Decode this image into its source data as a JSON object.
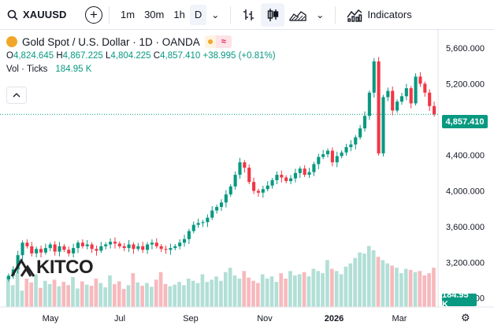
{
  "toolbar": {
    "symbol": "XAUUSD",
    "timeframes": [
      "1m",
      "30m",
      "1h",
      "D"
    ],
    "active_timeframe": "D",
    "indicators_label": "Indicators"
  },
  "legend": {
    "title": "Gold Spot / U.S. Dollar · 1D · OANDA",
    "o_label": "O",
    "o": "4,824.645",
    "h_label": "H",
    "h": "4,867.225",
    "l_label": "L",
    "l": "4,804.225",
    "c_label": "C",
    "c": "4,857.410",
    "change": "+38.995 (+0.81%)",
    "vol_label": "Vol · Ticks",
    "vol_value": "184.95 K",
    "pill_symbol": "≈"
  },
  "colors": {
    "up": "#089981",
    "down": "#f23645",
    "vol_up": "#b2dfd6",
    "vol_down": "#f7b9bd"
  },
  "chart_data": {
    "type": "candlestick",
    "price_axis_ticks": [
      "5,600.000",
      "5,200.000",
      "4,400.000",
      "4,000.000",
      "3,600.000",
      "3,200.000",
      "2,800.000"
    ],
    "x_axis_labels": [
      "May",
      "Jul",
      "Sep",
      "Nov",
      "2026",
      "Mar"
    ],
    "last_price": "4,857.410",
    "last_volume": "184.95 K",
    "ylim": [
      2700,
      5750
    ],
    "series": [
      {
        "name": "price",
        "close": [
          3050,
          3120,
          3280,
          3420,
          3380,
          3300,
          3350,
          3310,
          3360,
          3400,
          3320,
          3380,
          3340,
          3300,
          3360,
          3420,
          3380,
          3400,
          3350,
          3330,
          3380,
          3400,
          3430,
          3410,
          3380,
          3360,
          3400,
          3350,
          3380,
          3340,
          3400,
          3420,
          3380,
          3350,
          3340,
          3360,
          3380,
          3420,
          3460,
          3550,
          3620,
          3640,
          3650,
          3700,
          3780,
          3820,
          3870,
          3960,
          4050,
          4180,
          4320,
          4260,
          4100,
          4000,
          3980,
          4020,
          4060,
          4120,
          4180,
          4150,
          4110,
          4140,
          4200,
          4250,
          4180,
          4210,
          4300,
          4380,
          4410,
          4450,
          4320,
          4390,
          4430,
          4490,
          4520,
          4600,
          4700,
          4840,
          5100,
          5450,
          4420,
          5050,
          5120,
          4900,
          5000,
          5060,
          5150,
          4980,
          5280,
          5200,
          5100,
          4950,
          4857
        ]
      },
      {
        "name": "volume",
        "values": [
          55,
          40,
          68,
          30,
          52,
          45,
          60,
          35,
          48,
          42,
          50,
          38,
          46,
          40,
          55,
          34,
          47,
          41,
          39,
          52,
          44,
          36,
          58,
          42,
          47,
          33,
          40,
          62,
          45,
          39,
          44,
          37,
          50,
          64,
          42,
          38,
          41,
          46,
          40,
          52,
          48,
          44,
          60,
          46,
          50,
          56,
          48,
          64,
          72,
          58,
          52,
          66,
          54,
          48,
          44,
          60,
          52,
          56,
          46,
          62,
          52,
          66,
          58,
          60,
          64,
          56,
          70,
          66,
          62,
          86,
          70,
          66,
          60,
          74,
          80,
          90,
          100,
          98,
          112,
          104,
          92,
          86,
          80,
          76,
          72,
          62,
          70,
          68,
          64,
          66,
          58,
          62,
          72
        ]
      }
    ]
  }
}
